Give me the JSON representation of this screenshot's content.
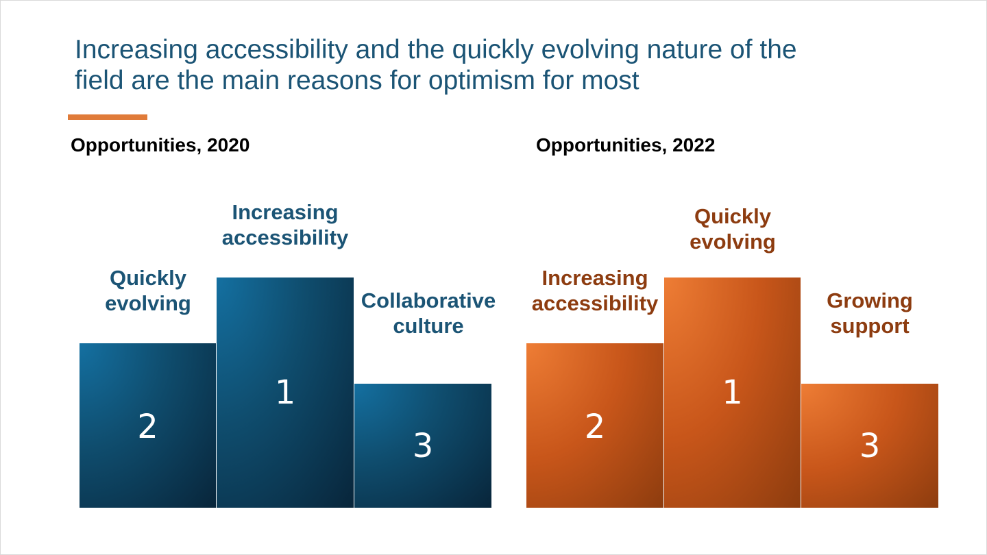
{
  "slide": {
    "title_lines": [
      "Increasing accessibility and the quickly evolving nature of the",
      "field are the main reasons for optimism for most"
    ]
  },
  "colors": {
    "title": "#1b5475",
    "accent": "#e07b39",
    "blue_block": "#0f4d6e",
    "orange_block": "#c8561a",
    "orange_label": "#8d3c10"
  },
  "panels": [
    {
      "heading": "Opportunities, 2020",
      "theme": "blue",
      "podium": [
        {
          "rank": "2",
          "label_lines": [
            "Quickly",
            "evolving"
          ]
        },
        {
          "rank": "1",
          "label_lines": [
            "Increasing",
            "accessibility"
          ]
        },
        {
          "rank": "3",
          "label_lines": [
            "Collaborative",
            "culture"
          ]
        }
      ]
    },
    {
      "heading": "Opportunities, 2022",
      "theme": "orange",
      "podium": [
        {
          "rank": "2",
          "label_lines": [
            "Increasing",
            "accessibility"
          ]
        },
        {
          "rank": "1",
          "label_lines": [
            "Quickly",
            "evolving"
          ]
        },
        {
          "rank": "3",
          "label_lines": [
            "Growing",
            "support"
          ]
        }
      ]
    }
  ]
}
